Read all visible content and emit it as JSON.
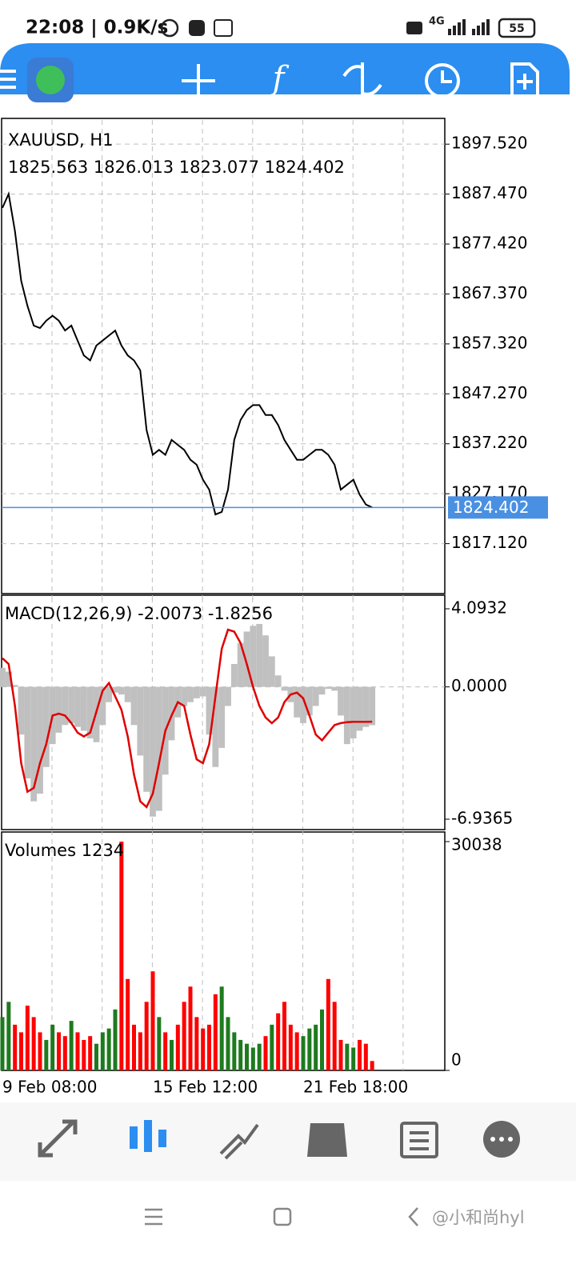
{
  "status_bar": {
    "time_speed": "22:08 | 0.9K/s",
    "network": "4G",
    "battery": "55"
  },
  "toolbar": {
    "function_icon": "f"
  },
  "watermark": "@小和尚hyl",
  "chart_data": [
    {
      "type": "line",
      "title": "XAUUSD, H1",
      "subtitle": "1825.563 1826.013 1823.077 1824.402",
      "categories": [
        "9 Feb 08:00",
        null,
        null,
        null,
        null,
        null,
        null,
        null,
        null,
        null,
        null,
        null,
        null,
        null,
        null,
        null,
        null,
        null,
        null,
        null,
        null,
        null,
        null,
        null,
        "15 Feb 12:00",
        null,
        null,
        null,
        null,
        null,
        null,
        null,
        null,
        null,
        null,
        null,
        null,
        null,
        null,
        null,
        null,
        null,
        null,
        null,
        null,
        null,
        null,
        null,
        "21 Feb 18:00",
        null,
        null,
        null,
        null,
        null,
        null,
        null,
        null,
        null,
        null,
        null
      ],
      "series": [
        {
          "color": "#000000",
          "values": [
            1884.7,
            1887.5,
            1880,
            1870,
            1865,
            1861,
            1860.5,
            1862,
            1863,
            1862,
            1860,
            1861,
            1858,
            1855,
            1854,
            1857,
            1858,
            1859,
            1860,
            1857,
            1855,
            1854,
            1852,
            1840,
            1835,
            1836,
            1835,
            1838,
            1837,
            1836,
            1834,
            1833,
            1830,
            1828,
            1823,
            1823.5,
            1828,
            1838,
            1842,
            1844,
            1845,
            1845,
            1843,
            1843,
            1841,
            1838,
            1836,
            1834,
            1834,
            1835,
            1836,
            1836,
            1835,
            1833,
            1828,
            1829,
            1830,
            1827,
            1825,
            1824.402
          ]
        }
      ],
      "current_price": 1824.402,
      "current_price_color": "#4a90e2",
      "ylim": [
        1807.07,
        1902.38
      ],
      "yticks": [
        {
          "value": 1897.52,
          "label": "1897.520"
        },
        {
          "value": 1887.47,
          "label": "1887.470"
        },
        {
          "value": 1877.42,
          "label": "1877.420"
        },
        {
          "value": 1867.37,
          "label": "1867.370"
        },
        {
          "value": 1857.32,
          "label": "1857.320"
        },
        {
          "value": 1847.27,
          "label": "1847.270"
        },
        {
          "value": 1837.22,
          "label": "1837.220"
        },
        {
          "value": 1827.17,
          "label": "1827.170"
        },
        {
          "value": 1817.12,
          "label": "1817.120"
        }
      ],
      "grid": true
    },
    {
      "type": "macd",
      "title": "MACD(12,26,9) -2.0073 -1.8256",
      "series": [
        {
          "color": "#c0c0c0",
          "values": [
            1.0,
            0.8,
            0.1,
            -2.5,
            -4.8,
            -6.0,
            -5.6,
            -4.2,
            -3.0,
            -2.4,
            -2.0,
            -1.9,
            -2.1,
            -2.3,
            -2.7,
            -2.9,
            -2.0,
            -0.8,
            -0.3,
            -0.4,
            -0.8,
            -2.0,
            -3.6,
            -5.5,
            -6.8,
            -6.5,
            -4.6,
            -2.8,
            -1.6,
            -1.0,
            -0.8,
            -0.6,
            -0.5,
            -2.5,
            -4.2,
            -3.2,
            -1.0,
            1.2,
            2.3,
            2.9,
            3.2,
            3.3,
            2.7,
            1.6,
            0.6,
            -0.2,
            -0.8,
            -1.6,
            -1.9,
            -1.5,
            -1.0,
            -0.4,
            -0.1,
            -0.2,
            -1.5,
            -3.0,
            -2.7,
            -2.3,
            -2.1,
            -2.0073
          ]
        },
        {
          "color": "#e00000",
          "values": [
            1.5,
            1.2,
            -1.0,
            -4.0,
            -5.5,
            -5.3,
            -4.0,
            -3.0,
            -1.5,
            -1.4,
            -1.5,
            -1.9,
            -2.4,
            -2.6,
            -2.4,
            -1.3,
            -0.2,
            0.2,
            -0.5,
            -1.2,
            -2.6,
            -4.6,
            -6.0,
            -6.3,
            -5.6,
            -4.0,
            -2.3,
            -1.5,
            -0.8,
            -1.0,
            -2.5,
            -3.8,
            -4.0,
            -3.0,
            -0.5,
            2.0,
            3.0,
            2.9,
            2.3,
            1.2,
            0.0,
            -1.0,
            -1.6,
            -1.9,
            -1.6,
            -0.8,
            -0.4,
            -0.3,
            -0.6,
            -1.5,
            -2.5,
            -2.8,
            -2.4,
            -2.0,
            -1.9,
            -1.85,
            -1.83,
            -1.83,
            -1.83,
            -1.8256
          ]
        }
      ],
      "ylim": [
        -6.9365,
        4.0932
      ],
      "yticks": [
        4.0932,
        {
          "value": 0,
          "label": "0.0000"
        },
        -6.9365
      ]
    },
    {
      "type": "volume",
      "title": "Volumes 1234",
      "values": [
        7000,
        9000,
        6000,
        5000,
        8500,
        7000,
        5000,
        4000,
        6000,
        5000,
        4500,
        6500,
        5000,
        4000,
        4500,
        3500,
        5000,
        5500,
        8000,
        30038,
        12000,
        6000,
        5000,
        9000,
        13000,
        7000,
        5000,
        4000,
        6000,
        9000,
        11000,
        7000,
        5500,
        6000,
        10000,
        11000,
        7000,
        5000,
        4000,
        3500,
        3000,
        3500,
        4500,
        6000,
        7500,
        9000,
        6000,
        5000,
        4500,
        5500,
        6000,
        8000,
        12000,
        9000,
        4000,
        3500,
        3000,
        4000,
        3500,
        1234
      ],
      "up_color": "#1e7a1e",
      "down_color": "#ff0000",
      "ylim": [
        0,
        30038
      ],
      "yticks": [
        30038,
        0
      ]
    }
  ]
}
